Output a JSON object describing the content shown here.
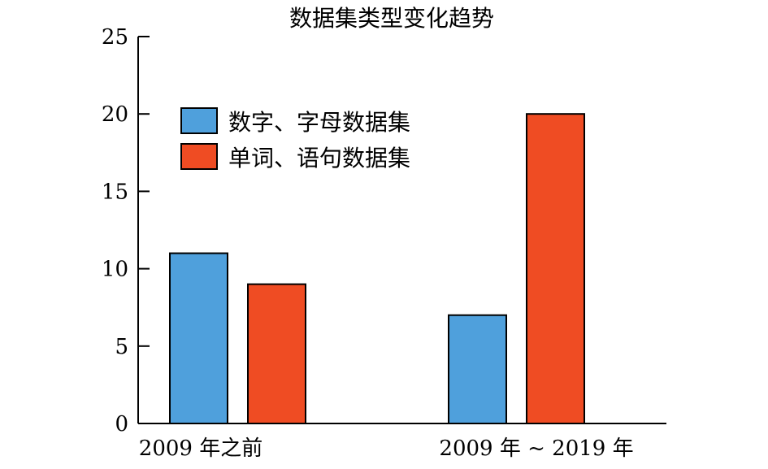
{
  "chart_data": {
    "type": "bar",
    "title": "数据集类型变化趋势",
    "xlabel": "",
    "ylabel": "",
    "categories": [
      "2009 年之前",
      "2009 年 ~ 2019 年"
    ],
    "series": [
      {
        "name": "数字、字母数据集",
        "values": [
          11,
          7
        ],
        "color": "#4fa0dc"
      },
      {
        "name": "单词、语句数据集",
        "values": [
          9,
          20
        ],
        "color": "#ef4c23"
      }
    ],
    "ylim": [
      0,
      25
    ],
    "yticks": [
      "0",
      "5",
      "10",
      "15",
      "20",
      "25"
    ],
    "grid": false,
    "legend_position": "top-left"
  }
}
